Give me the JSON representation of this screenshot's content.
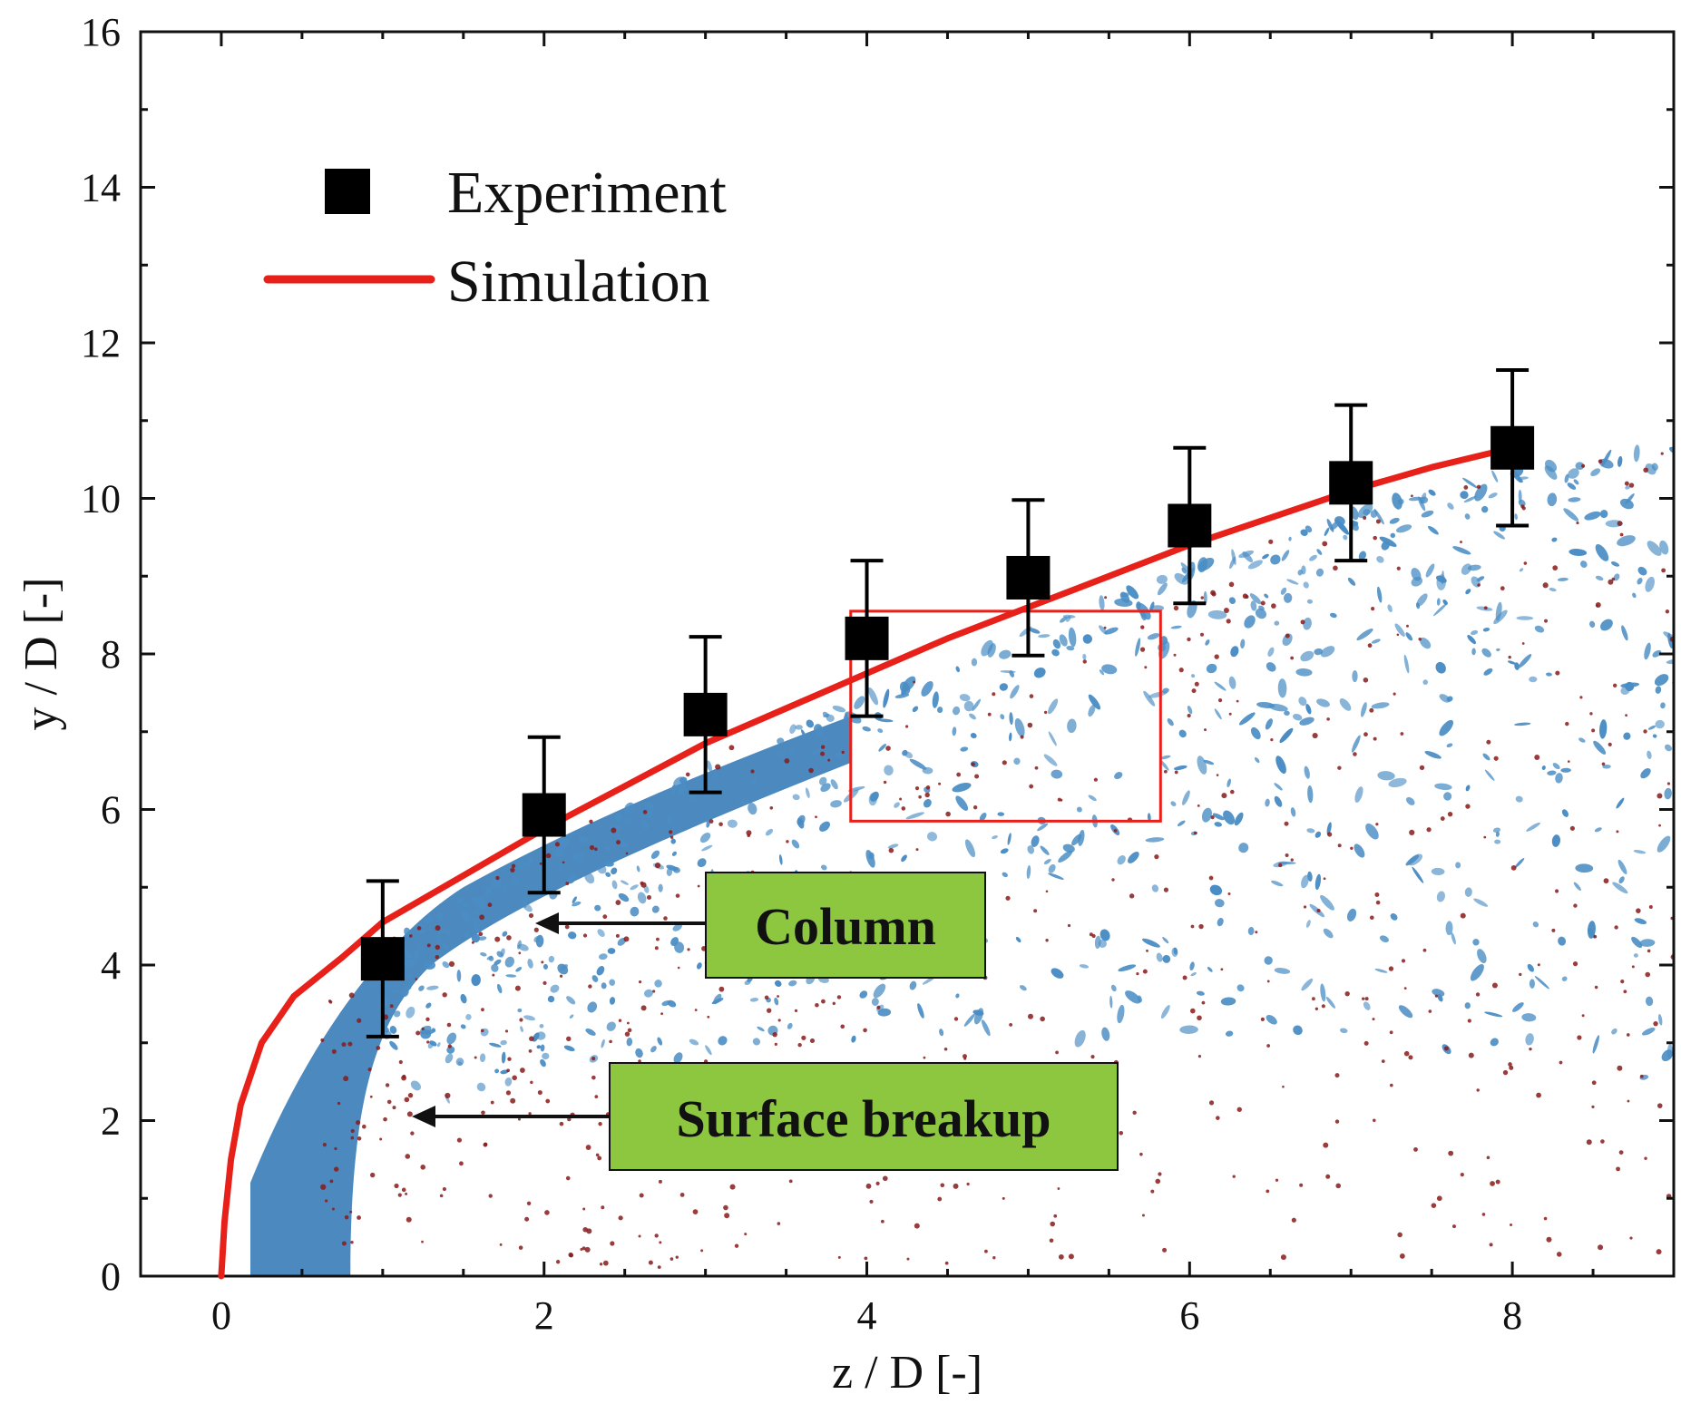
{
  "chart_data": {
    "type": "scatter",
    "xlabel": "z / D [-]",
    "ylabel": "y / D [-]",
    "xlim": [
      -0.5,
      9
    ],
    "ylim": [
      0,
      16
    ],
    "x_ticks": [
      "0",
      "2",
      "4",
      "6",
      "8"
    ],
    "y_ticks": [
      "0",
      "2",
      "4",
      "6",
      "8",
      "10",
      "12",
      "14",
      "16"
    ],
    "grid": false,
    "legend_position": "top-left",
    "series": [
      {
        "name": "Experiment",
        "kind": "markers-with-error-bars",
        "marker": "square",
        "color": "#000000",
        "x": [
          1,
          2,
          3,
          4,
          5,
          6,
          7,
          8
        ],
        "y": [
          4.08,
          5.93,
          7.22,
          8.2,
          8.98,
          9.65,
          10.2,
          10.65
        ],
        "y_err_low": [
          3.08,
          4.93,
          6.22,
          7.2,
          7.98,
          8.65,
          9.2,
          9.65
        ],
        "y_err_high": [
          5.08,
          6.93,
          8.22,
          9.2,
          9.98,
          10.65,
          11.2,
          11.65
        ]
      },
      {
        "name": "Simulation",
        "kind": "line",
        "color": "#e8201a",
        "x": [
          0,
          0.02,
          0.06,
          0.12,
          0.25,
          0.45,
          0.75,
          1.0,
          1.5,
          2.0,
          2.5,
          3.0,
          3.5,
          4.0,
          4.5,
          5.0,
          5.5,
          6.0,
          6.5,
          7.0,
          7.5,
          8.0
        ],
        "y": [
          0,
          0.7,
          1.5,
          2.2,
          3.0,
          3.6,
          4.1,
          4.55,
          5.15,
          5.75,
          6.3,
          6.85,
          7.3,
          7.75,
          8.2,
          8.6,
          9.0,
          9.4,
          9.75,
          10.1,
          10.4,
          10.65
        ]
      }
    ],
    "highlight_box": {
      "x": [
        3.9,
        5.82
      ],
      "y": [
        5.85,
        8.55
      ],
      "color": "#e8201a"
    },
    "annotations": [
      {
        "text": "Column",
        "box_color": "#8dc63f",
        "points_to": [
          1.95,
          4.55
        ]
      },
      {
        "text": "Surface breakup",
        "box_color": "#8dc63f",
        "points_to": [
          1.15,
          2.1
        ]
      }
    ],
    "background_image": "blue liquid spray isosurface with dark red droplets"
  }
}
